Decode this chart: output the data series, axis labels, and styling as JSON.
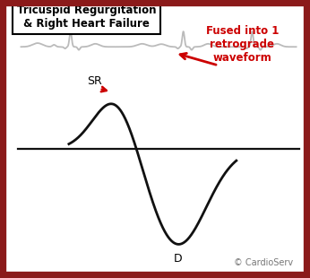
{
  "title_line1": "Tricuspid Regurgitation",
  "title_line2": "& Right Heart Failure",
  "annotation_text": "Fused into 1\nretrograde\nwaveform",
  "label_SR": "SR",
  "label_D": "D",
  "copyright_text": "© CardioServ",
  "border_color": "#8B1A1A",
  "background_color": "#FFFFFF",
  "ecg_color": "#BBBBBB",
  "waveform_color": "#111111",
  "baseline_color": "#111111",
  "annotation_color": "#CC0000",
  "waveform_linewidth": 2.0,
  "ecg_linewidth": 1.3,
  "baseline_linewidth": 1.6,
  "xlim": [
    0,
    10
  ],
  "ylim": [
    -3.8,
    5.0
  ],
  "ecg_baseline_y": 3.6,
  "ecg_amplitude": 0.55,
  "sr_peak_x": 3.5,
  "sr_peak_y": 2.0,
  "d_trough_x": 5.8,
  "d_trough_y": -2.8,
  "baseline_y": 0.3
}
